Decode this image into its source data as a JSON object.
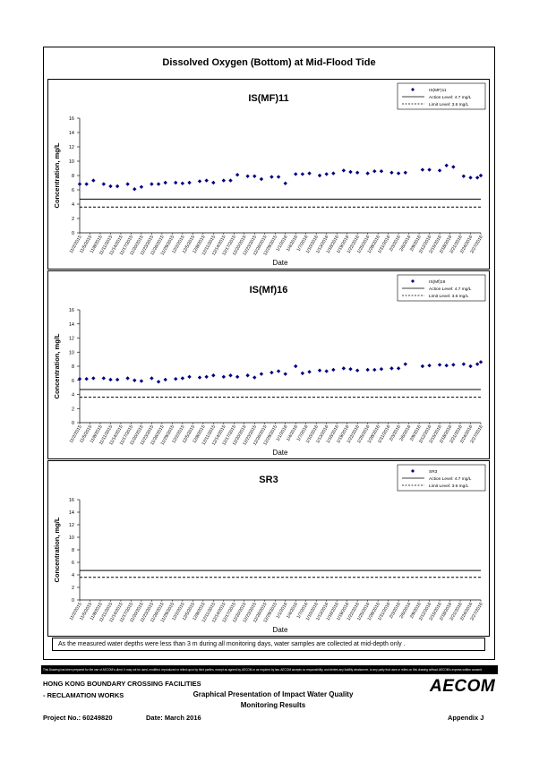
{
  "title": "Dissolved Oxygen (Bottom) at Mid-Flood Tide",
  "chart_data": [
    {
      "type": "scatter",
      "title": "IS(MF)11",
      "x_label": "Date",
      "y_label": "Concentration, mg/L",
      "x": [
        "11/2/2015",
        "11/4/2015",
        "11/6/2015",
        "11/9/2015",
        "11/11/2015",
        "11/13/2015",
        "11/16/2015",
        "11/18/2015",
        "11/20/2015",
        "11/23/2015",
        "11/25/2015",
        "11/27/2015",
        "11/30/2015",
        "12/2/2015",
        "12/4/2015",
        "12/7/2015",
        "12/9/2015",
        "12/11/2015",
        "12/14/2015",
        "12/16/2015",
        "12/18/2015",
        "12/21/2015",
        "12/23/2015",
        "12/25/2015",
        "12/28/2015",
        "12/30/2015",
        "1/1/2016",
        "1/4/2016",
        "1/6/2016",
        "1/8/2016",
        "1/11/2016",
        "1/13/2016",
        "1/15/2016",
        "1/18/2016",
        "1/20/2016",
        "1/22/2016",
        "1/25/2016",
        "1/27/2016",
        "1/29/2016",
        "2/1/2016",
        "2/3/2016",
        "2/5/2016",
        "2/10/2016",
        "2/12/2016",
        "2/15/2016",
        "2/17/2016",
        "2/19/2016",
        "2/22/2016",
        "2/24/2016",
        "2/26/2016",
        "2/27/2016"
      ],
      "series": [
        {
          "name": "IS(MF)11",
          "color": "#000080",
          "values": [
            6.8,
            6.8,
            7.3,
            6.8,
            6.5,
            6.5,
            6.8,
            6.1,
            6.4,
            6.8,
            6.8,
            7.0,
            7.0,
            6.9,
            7.0,
            7.2,
            7.3,
            7.0,
            7.3,
            7.3,
            8.1,
            7.9,
            7.9,
            7.5,
            7.8,
            7.8,
            6.9,
            8.2,
            8.2,
            8.3,
            8.0,
            8.2,
            8.3,
            8.7,
            8.5,
            8.4,
            8.3,
            8.6,
            8.6,
            8.4,
            8.3,
            8.4,
            8.8,
            8.8,
            8.7,
            9.4,
            9.2,
            7.9,
            7.7,
            7.7,
            8.0
          ]
        }
      ],
      "reference_lines": [
        {
          "name": "Action Level: 4.7 mg/L",
          "value": 4.7,
          "style": "solid"
        },
        {
          "name": "Limit Level: 3.6 mg/L",
          "value": 3.6,
          "style": "dashed"
        }
      ],
      "xlim": [
        "11/2/2015",
        "2/27/2016"
      ],
      "xticks": [
        "11/2/2015",
        "11/5/2015",
        "11/8/2015",
        "11/11/2015",
        "11/14/2015",
        "11/17/2015",
        "11/20/2015",
        "11/23/2015",
        "11/26/2015",
        "11/29/2015",
        "12/2/2015",
        "12/5/2015",
        "12/8/2015",
        "12/11/2015",
        "12/14/2015",
        "12/17/2015",
        "12/20/2015",
        "12/23/2015",
        "12/26/2015",
        "12/29/2015",
        "1/1/2016",
        "1/4/2016",
        "1/7/2016",
        "1/10/2016",
        "1/13/2016",
        "1/16/2016",
        "1/19/2016",
        "1/22/2016",
        "1/25/2016",
        "1/28/2016",
        "1/31/2016",
        "2/3/2016",
        "2/6/2016",
        "2/9/2016",
        "2/12/2016",
        "2/15/2016",
        "2/18/2016",
        "2/21/2016",
        "2/24/2016",
        "2/27/2016"
      ],
      "ylim": [
        0,
        16
      ],
      "yticks": [
        0,
        2,
        4,
        6,
        8,
        10,
        12,
        14,
        16
      ]
    },
    {
      "type": "scatter",
      "title": "IS(Mf)16",
      "x_label": "Date",
      "y_label": "Concentration, mg/L",
      "x": [
        "11/2/2015",
        "11/4/2015",
        "11/6/2015",
        "11/9/2015",
        "11/11/2015",
        "11/13/2015",
        "11/16/2015",
        "11/18/2015",
        "11/20/2015",
        "11/23/2015",
        "11/25/2015",
        "11/27/2015",
        "11/30/2015",
        "12/2/2015",
        "12/4/2015",
        "12/7/2015",
        "12/9/2015",
        "12/11/2015",
        "12/14/2015",
        "12/16/2015",
        "12/18/2015",
        "12/21/2015",
        "12/23/2015",
        "12/25/2015",
        "12/28/2015",
        "12/30/2015",
        "1/1/2016",
        "1/4/2016",
        "1/6/2016",
        "1/8/2016",
        "1/11/2016",
        "1/13/2016",
        "1/15/2016",
        "1/18/2016",
        "1/20/2016",
        "1/22/2016",
        "1/25/2016",
        "1/27/2016",
        "1/29/2016",
        "2/1/2016",
        "2/3/2016",
        "2/5/2016",
        "2/10/2016",
        "2/12/2016",
        "2/15/2016",
        "2/17/2016",
        "2/19/2016",
        "2/22/2016",
        "2/24/2016",
        "2/26/2016",
        "2/27/2016"
      ],
      "series": [
        {
          "name": "IS(Mf)16",
          "color": "#000080",
          "values": [
            6.2,
            6.2,
            6.3,
            6.3,
            6.1,
            6.1,
            6.3,
            6.0,
            5.9,
            6.3,
            5.8,
            6.1,
            6.2,
            6.3,
            6.5,
            6.4,
            6.5,
            6.7,
            6.5,
            6.7,
            6.5,
            6.7,
            6.4,
            6.9,
            7.1,
            7.3,
            6.9,
            8.0,
            7.0,
            7.2,
            7.4,
            7.3,
            7.5,
            7.7,
            7.6,
            7.4,
            7.5,
            7.5,
            7.6,
            7.7,
            7.7,
            8.3,
            8.0,
            8.1,
            8.2,
            8.1,
            8.2,
            8.3,
            8.0,
            8.3,
            8.6
          ]
        }
      ],
      "reference_lines": [
        {
          "name": "Action Level: 4.7 mg/L",
          "value": 4.7,
          "style": "solid"
        },
        {
          "name": "Limit Level: 3.6 mg/L",
          "value": 3.6,
          "style": "dashed"
        }
      ],
      "xlim": [
        "11/2/2015",
        "2/27/2016"
      ],
      "xticks": [
        "11/2/2015",
        "11/5/2015",
        "11/8/2015",
        "11/11/2015",
        "11/14/2015",
        "11/17/2015",
        "11/20/2015",
        "11/23/2015",
        "11/26/2015",
        "11/29/2015",
        "12/2/2015",
        "12/5/2015",
        "12/8/2015",
        "12/11/2015",
        "12/14/2015",
        "12/17/2015",
        "12/20/2015",
        "12/23/2015",
        "12/26/2015",
        "12/29/2015",
        "1/1/2016",
        "1/4/2016",
        "1/7/2016",
        "1/10/2016",
        "1/13/2016",
        "1/16/2016",
        "1/19/2016",
        "1/22/2016",
        "1/25/2016",
        "1/28/2016",
        "1/31/2016",
        "2/3/2016",
        "2/6/2016",
        "2/9/2016",
        "2/12/2016",
        "2/15/2016",
        "2/18/2016",
        "2/21/2016",
        "2/24/2016",
        "2/27/2016"
      ],
      "ylim": [
        0,
        16
      ],
      "yticks": [
        0,
        2,
        4,
        6,
        8,
        10,
        12,
        14,
        16
      ]
    },
    {
      "type": "scatter",
      "title": "SR3",
      "x_label": "Date",
      "y_label": "Concentration, mg/L",
      "x": [],
      "series": [
        {
          "name": "SR3",
          "color": "#000080",
          "values": []
        }
      ],
      "reference_lines": [
        {
          "name": "Action Level: 4.7 mg/L",
          "value": 4.7,
          "style": "solid"
        },
        {
          "name": "Limit Level: 3.6 mg/L",
          "value": 3.6,
          "style": "dashed"
        }
      ],
      "xlim": [
        "11/2/2015",
        "2/27/2016"
      ],
      "xticks": [
        "11/2/2015",
        "11/5/2015",
        "11/8/2015",
        "11/11/2015",
        "11/14/2015",
        "11/17/2015",
        "11/20/2015",
        "11/23/2015",
        "11/26/2015",
        "11/29/2015",
        "12/2/2015",
        "12/5/2015",
        "12/8/2015",
        "12/11/2015",
        "12/14/2015",
        "12/17/2015",
        "12/20/2015",
        "12/23/2015",
        "12/26/2015",
        "12/29/2015",
        "1/1/2016",
        "1/4/2016",
        "1/7/2016",
        "1/10/2016",
        "1/13/2016",
        "1/16/2016",
        "1/19/2016",
        "1/22/2016",
        "1/25/2016",
        "1/28/2016",
        "1/31/2016",
        "2/3/2016",
        "2/6/2016",
        "2/9/2016",
        "2/12/2016",
        "2/15/2016",
        "2/18/2016",
        "2/21/2016",
        "2/24/2016",
        "2/27/2016"
      ],
      "ylim": [
        0,
        16
      ],
      "yticks": [
        0,
        2,
        4,
        6,
        8,
        10,
        12,
        14,
        16
      ]
    }
  ],
  "note": "As the measured water depths were less than 3 m during all monitoring days, water samples are collected  at mid-depth only .",
  "footer": {
    "disclaimer": "This Drawing has been prepared for the use of AECOM's client. It may not be used, modified, reproduced or relied upon by third parties, except as agreed by AECOM or as required by law. AECOM accepts no responsibility, and denies any liability whatsoever, to any party that uses or relies on this drawing without AECOM's express written consent.",
    "project_line1": "HONG KONG BOUNDARY CROSSING FACILITIES",
    "project_line2": "- RECLAMATION WORKS",
    "drawing_title_line1": "Graphical Presentation of Impact Water Quality",
    "drawing_title_line2": "Monitoring Results",
    "logo": "AECOM",
    "project_no": "Project No.: 60249820",
    "date": "Date: March 2016",
    "appendix": "Appendix J"
  }
}
